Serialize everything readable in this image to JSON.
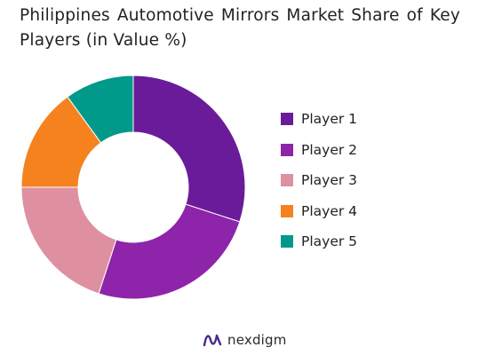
{
  "title": "Philippines Automotive Mirrors Market Share of Key Players (in Value %)",
  "brand": {
    "name": "nexdigm",
    "logo_icon": "nexdigm-wave-logo-icon",
    "logo_color": "#4a2c8a"
  },
  "chart_data": {
    "type": "pie",
    "donut": true,
    "title": "Philippines Automotive Mirrors Market Share of Key Players (in Value %)",
    "legend_position": "right",
    "categories": [
      "Player 1",
      "Player 2",
      "Player 3",
      "Player 4",
      "Player 5"
    ],
    "values": [
      30,
      25,
      20,
      15,
      10
    ],
    "colors": [
      "#6a1b9a",
      "#8e24aa",
      "#de8fa0",
      "#f5821f",
      "#00998a"
    ]
  }
}
